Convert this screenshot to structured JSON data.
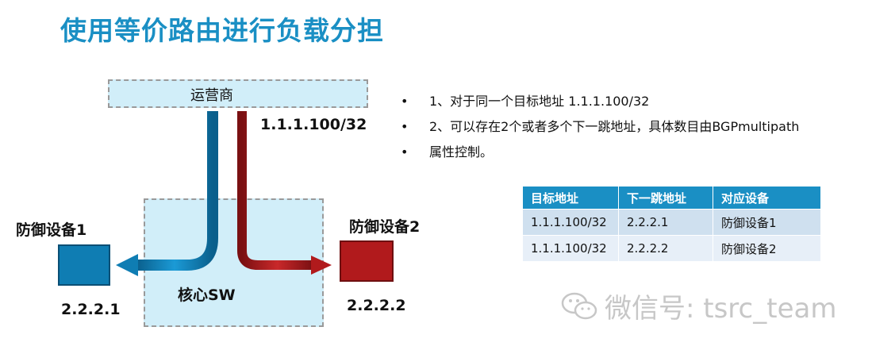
{
  "title": "使用等价路由进行负载分担",
  "diagram": {
    "isp_label": "运营商",
    "target_ip": "1.1.1.100/32",
    "core_label": "核心SW",
    "device1": {
      "label": "防御设备1",
      "ip": "2.2.2.1",
      "color": "#0f7db3"
    },
    "device2": {
      "label": "防御设备2",
      "ip": "2.2.2.2",
      "color": "#b11a1c"
    }
  },
  "bullets": [
    "1、对于同一个目标地址 1.1.1.100/32",
    "2、可以存在2个或者多个下一跳地址，具体数目由BGPmultipath",
    "属性控制。"
  ],
  "table": {
    "headers": [
      "目标地址",
      "下一跳地址",
      "对应设备"
    ],
    "rows": [
      [
        "1.1.1.100/32",
        "2.2.2.1",
        "防御设备1"
      ],
      [
        "1.1.1.100/32",
        "2.2.2.2",
        "防御设备2"
      ]
    ]
  },
  "watermark": "微信号: tsrc_team",
  "colors": {
    "title": "#1a8fc4",
    "box_fill": "#d1eef9",
    "blue_arrow": "#0f7db3",
    "red_arrow": "#b11a1c"
  }
}
